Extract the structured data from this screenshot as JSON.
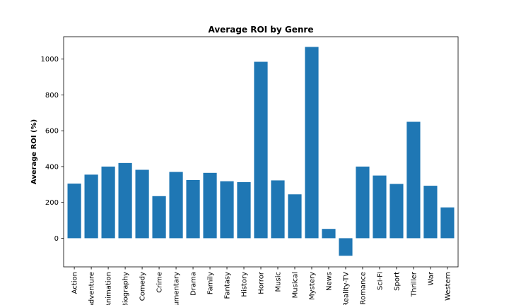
{
  "chart_data": {
    "type": "bar",
    "title": "Average ROI by Genre",
    "xlabel": "",
    "ylabel": "Average ROI (%)",
    "categories": [
      "Action",
      "Adventure",
      "Animation",
      "Biography",
      "Comedy",
      "Crime",
      "Documentary",
      "Drama",
      "Family",
      "Fantasy",
      "History",
      "Horror",
      "Music",
      "Musical",
      "Mystery",
      "News",
      "Reality-TV",
      "Romance",
      "Sci-Fi",
      "Sport",
      "Thriller",
      "War",
      "Western"
    ],
    "values": [
      305,
      355,
      400,
      420,
      382,
      235,
      370,
      325,
      365,
      318,
      313,
      985,
      323,
      245,
      1068,
      52,
      -98,
      400,
      350,
      303,
      650,
      293,
      172
    ],
    "ylim": [
      -160,
      1125
    ],
    "yticks": [
      0,
      200,
      400,
      600,
      800,
      1000
    ],
    "grid": false,
    "bar_color": "#1f77b4"
  }
}
